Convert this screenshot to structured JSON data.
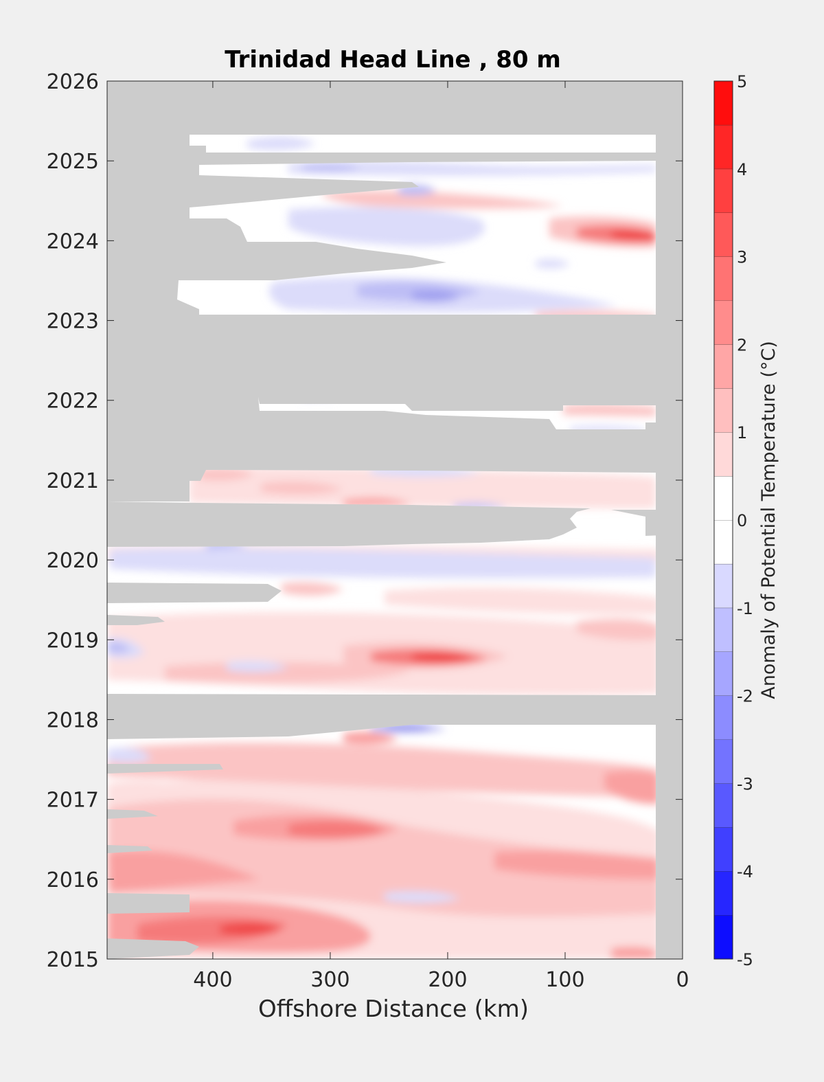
{
  "chart_data": {
    "type": "heatmap",
    "title": "Trinidad Head Line , 80 m",
    "xlabel": "Offshore Distance (km)",
    "ylabel": "",
    "x_reversed": true,
    "xlim": [
      0,
      490
    ],
    "ylim": [
      2015,
      2026
    ],
    "xticks": [
      400,
      300,
      200,
      100,
      0
    ],
    "xtick_labels": [
      "400",
      "300",
      "200",
      "100",
      "0"
    ],
    "yticks": [
      2015,
      2016,
      2017,
      2018,
      2019,
      2020,
      2021,
      2022,
      2023,
      2024,
      2025,
      2026
    ],
    "ytick_labels": [
      "2015",
      "2016",
      "2017",
      "2018",
      "2019",
      "2020",
      "2021",
      "2022",
      "2023",
      "2024",
      "2025",
      "2026"
    ],
    "colorbar": {
      "label": "Anomaly of Potential Temperature (°C)",
      "range": [
        -5,
        5
      ],
      "step": 0.5,
      "ticks": [
        -5,
        -4,
        -3,
        -2,
        -1,
        0,
        1,
        2,
        3,
        4,
        5
      ],
      "tick_labels": [
        "-5",
        "-4",
        "-3",
        "-2",
        "-1",
        "0",
        "1",
        "2",
        "3",
        "4",
        "5"
      ],
      "colormap": "blue-white-red"
    },
    "missing_color": "#cccccc",
    "no_data_regions": [
      {
        "t0": 2025.33,
        "t1": 2026.0,
        "x0": 490,
        "x1": 0
      },
      {
        "t0": 2022.95,
        "t1": 2023.02,
        "x0": 490,
        "x1": 0
      },
      {
        "t0": 2022.0,
        "t1": 2022.95,
        "x0": 490,
        "x1": 0
      },
      {
        "t0": 2021.1,
        "t1": 2021.85,
        "x0": 490,
        "x1": 0
      },
      {
        "t0": 2020.2,
        "t1": 2020.5,
        "x0": 490,
        "x1": 90
      },
      {
        "t0": 2017.75,
        "t1": 2018.25,
        "x0": 490,
        "x1": 20
      },
      {
        "t0": 2015.0,
        "t1": 2026.0,
        "x0": 20,
        "x1": 0
      }
    ],
    "features": [
      {
        "sign": "warm",
        "x": 370,
        "t": 2015.35,
        "peak": 4.0
      },
      {
        "sign": "warm",
        "x": 470,
        "t": 2015.4,
        "peak": 3.0
      },
      {
        "sign": "warm",
        "x": 300,
        "t": 2016.6,
        "peak": 3.0
      },
      {
        "sign": "warm",
        "x": 450,
        "t": 2016.7,
        "peak": 2.5
      },
      {
        "sign": "warm",
        "x": 100,
        "t": 2016.15,
        "peak": 2.5
      },
      {
        "sign": "warm",
        "x": 195,
        "t": 2018.75,
        "peak": 3.5
      },
      {
        "sign": "warm",
        "x": 30,
        "t": 2019.1,
        "peak": 2.5
      },
      {
        "sign": "warm",
        "x": 270,
        "t": 2017.7,
        "peak": 3.0
      },
      {
        "sign": "warm",
        "x": 40,
        "t": 2024.05,
        "peak": 3.5
      },
      {
        "sign": "warm",
        "x": 60,
        "t": 2023.0,
        "peak": 2.5
      },
      {
        "sign": "warm",
        "x": 30,
        "t": 2017.25,
        "peak": 2.0
      },
      {
        "sign": "cool",
        "x": 250,
        "t": 2017.85,
        "peak": -2.5
      },
      {
        "sign": "cool",
        "x": 210,
        "t": 2023.3,
        "peak": -1.5
      },
      {
        "sign": "cool",
        "x": 480,
        "t": 2018.95,
        "peak": -1.0
      },
      {
        "sign": "cool",
        "x": 230,
        "t": 2024.6,
        "peak": -1.5
      },
      {
        "sign": "cool",
        "x": 340,
        "t": 2020.2,
        "peak": -1.0
      },
      {
        "sign": "cool",
        "x": 330,
        "t": 2024.9,
        "peak": -1.0
      }
    ]
  }
}
